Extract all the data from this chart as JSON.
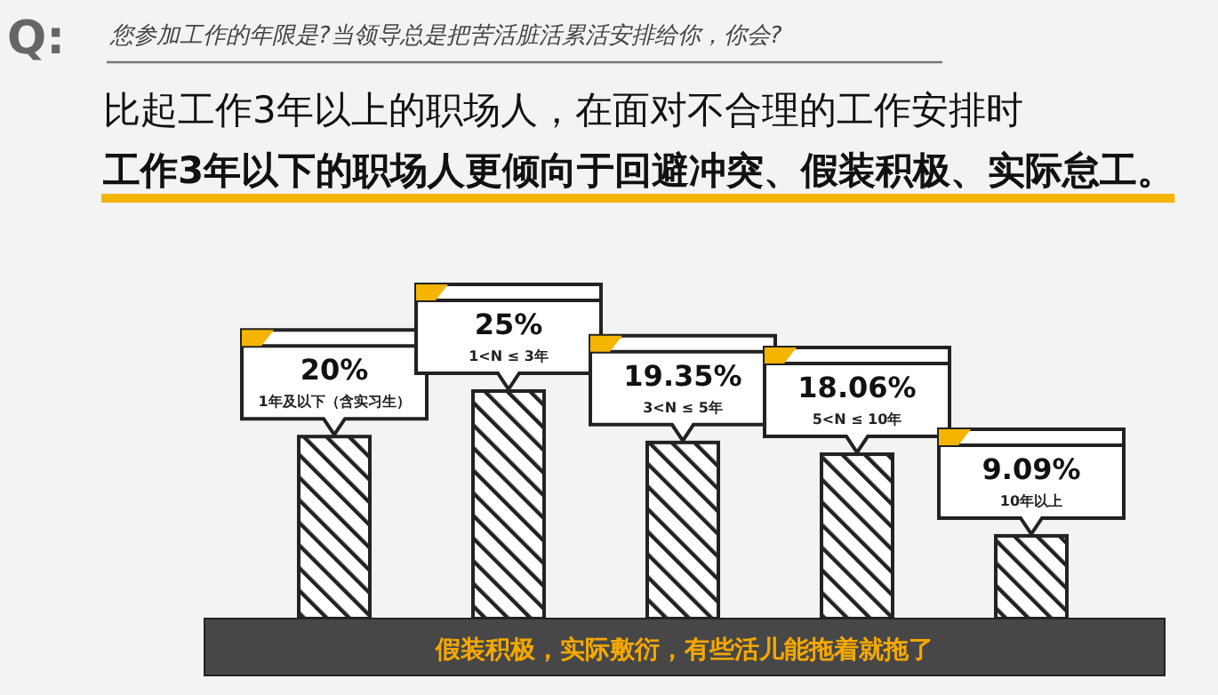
{
  "chart_data": {
    "type": "bar",
    "title": "您参加工作的年限是?当领导总是把苦活脏活累活安排给你，你会?",
    "subtitle": "比起工作3年以上的职场人，在面对不合理的工作安排时",
    "categories": [
      "1年及以下（含实习生）",
      "1<N ≤ 3年",
      "3<N ≤ 5年",
      "5<N ≤ 10年",
      "10年以上"
    ],
    "values": [
      20,
      25,
      19.35,
      18.06,
      9.09
    ],
    "value_labels": [
      "20%",
      "25%",
      "19.35%",
      "18.06%",
      "9.09%"
    ],
    "color": "#222222",
    "annotations": [
      "Q:",
      "工作3年以下的职场人更倾向于回避冲突、假装积极、实际怠工。",
      "假装积极，实际敷衍，有些活儿能拖着就拖了"
    ]
  }
}
